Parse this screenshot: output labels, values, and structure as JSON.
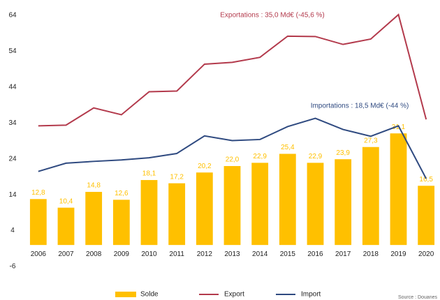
{
  "chart_data": {
    "type": "bar",
    "categories": [
      "2006",
      "2007",
      "2008",
      "2009",
      "2010",
      "2011",
      "2012",
      "2013",
      "2014",
      "2015",
      "2016",
      "2017",
      "2018",
      "2019",
      "2020"
    ],
    "series": [
      {
        "name": "Solde",
        "type": "bar",
        "color": "#ffc000",
        "values": [
          12.8,
          10.4,
          14.8,
          12.6,
          18.1,
          17.2,
          20.2,
          22.0,
          22.9,
          25.4,
          22.9,
          23.9,
          27.3,
          31.1,
          16.5
        ],
        "value_labels": [
          "12,8",
          "10,4",
          "14,8",
          "12,6",
          "18,1",
          "17,2",
          "20,2",
          "22,0",
          "22,9",
          "25,4",
          "22,9",
          "23,9",
          "27,3",
          "31,1",
          "16,5"
        ]
      },
      {
        "name": "Export",
        "type": "line",
        "color": "#b33a4c",
        "values": [
          33.2,
          33.4,
          38.2,
          36.3,
          42.7,
          42.9,
          50.4,
          50.9,
          52.3,
          58.2,
          58.1,
          55.9,
          57.4,
          64.2,
          35.0
        ]
      },
      {
        "name": "Import",
        "type": "line",
        "color": "#2f4a80",
        "values": [
          20.5,
          22.8,
          23.3,
          23.7,
          24.3,
          25.5,
          30.4,
          29.1,
          29.4,
          33.0,
          35.3,
          32.2,
          30.3,
          33.2,
          18.5
        ]
      }
    ],
    "annotations": [
      {
        "text": "Exportations : 35,0 Md€  (-45,6 %)",
        "color": "#b33a4c"
      },
      {
        "text": "Importations : 18,5 Md€  (-44 %)",
        "color": "#2f4a80"
      }
    ],
    "source": "Source : Douanes",
    "ylim": [
      -6,
      64
    ],
    "yticks": [
      -6,
      4,
      14,
      24,
      34,
      44,
      54,
      64
    ],
    "grid": false
  }
}
